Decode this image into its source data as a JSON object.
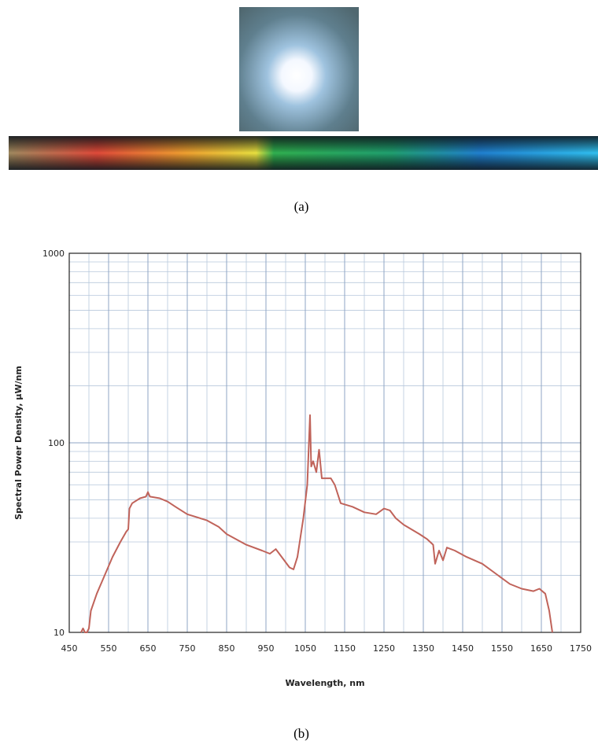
{
  "caption_a": "(a)",
  "caption_b": "(b)",
  "chart_data": {
    "type": "line",
    "y_label": "Spectral Power Density, µW/nm",
    "x_label": "Wavelength, nm",
    "log_y": true,
    "grid": true,
    "xlim": [
      450,
      1750
    ],
    "ylim": [
      10,
      1000
    ],
    "xticks": [
      450,
      550,
      650,
      750,
      850,
      950,
      1050,
      1150,
      1250,
      1350,
      1450,
      1550,
      1650,
      1750
    ],
    "minor_xticks": [
      500,
      600,
      700,
      800,
      900,
      1000,
      1100,
      1200,
      1300,
      1400,
      1500,
      1600,
      1700
    ],
    "yticks": [
      10,
      100,
      1000
    ],
    "minor_yticks": [
      20,
      30,
      40,
      50,
      60,
      70,
      80,
      90,
      200,
      300,
      400,
      500,
      600,
      700,
      800,
      900
    ],
    "series": [
      {
        "color": "#c0635a",
        "x": [
          480,
          485,
          490,
          495,
          500,
          505,
          520,
          540,
          560,
          580,
          595,
          600,
          603,
          610,
          630,
          645,
          650,
          655,
          680,
          700,
          720,
          750,
          800,
          830,
          850,
          900,
          940,
          960,
          975,
          990,
          1010,
          1020,
          1030,
          1045,
          1055,
          1062,
          1065,
          1070,
          1078,
          1085,
          1092,
          1100,
          1115,
          1125,
          1140,
          1170,
          1200,
          1230,
          1250,
          1265,
          1280,
          1300,
          1340,
          1360,
          1375,
          1380,
          1390,
          1400,
          1410,
          1430,
          1460,
          1500,
          1540,
          1570,
          1600,
          1630,
          1645,
          1660,
          1670,
          1678
        ],
        "values": [
          10,
          10.5,
          10,
          10,
          10.5,
          13,
          16,
          20,
          25,
          30,
          34,
          35,
          45,
          48,
          51,
          52,
          55,
          52,
          51,
          49,
          46,
          42,
          39,
          36,
          33,
          29,
          27,
          26,
          27.5,
          25,
          22,
          21.5,
          25,
          40,
          60,
          140,
          75,
          80,
          70,
          92,
          65,
          65,
          65,
          60,
          48,
          46,
          43,
          42,
          45,
          44,
          40,
          37,
          33,
          31,
          29,
          23,
          27,
          24,
          28,
          27,
          25,
          23,
          20,
          18,
          17,
          16.5,
          17,
          16,
          13,
          10
        ]
      }
    ]
  }
}
